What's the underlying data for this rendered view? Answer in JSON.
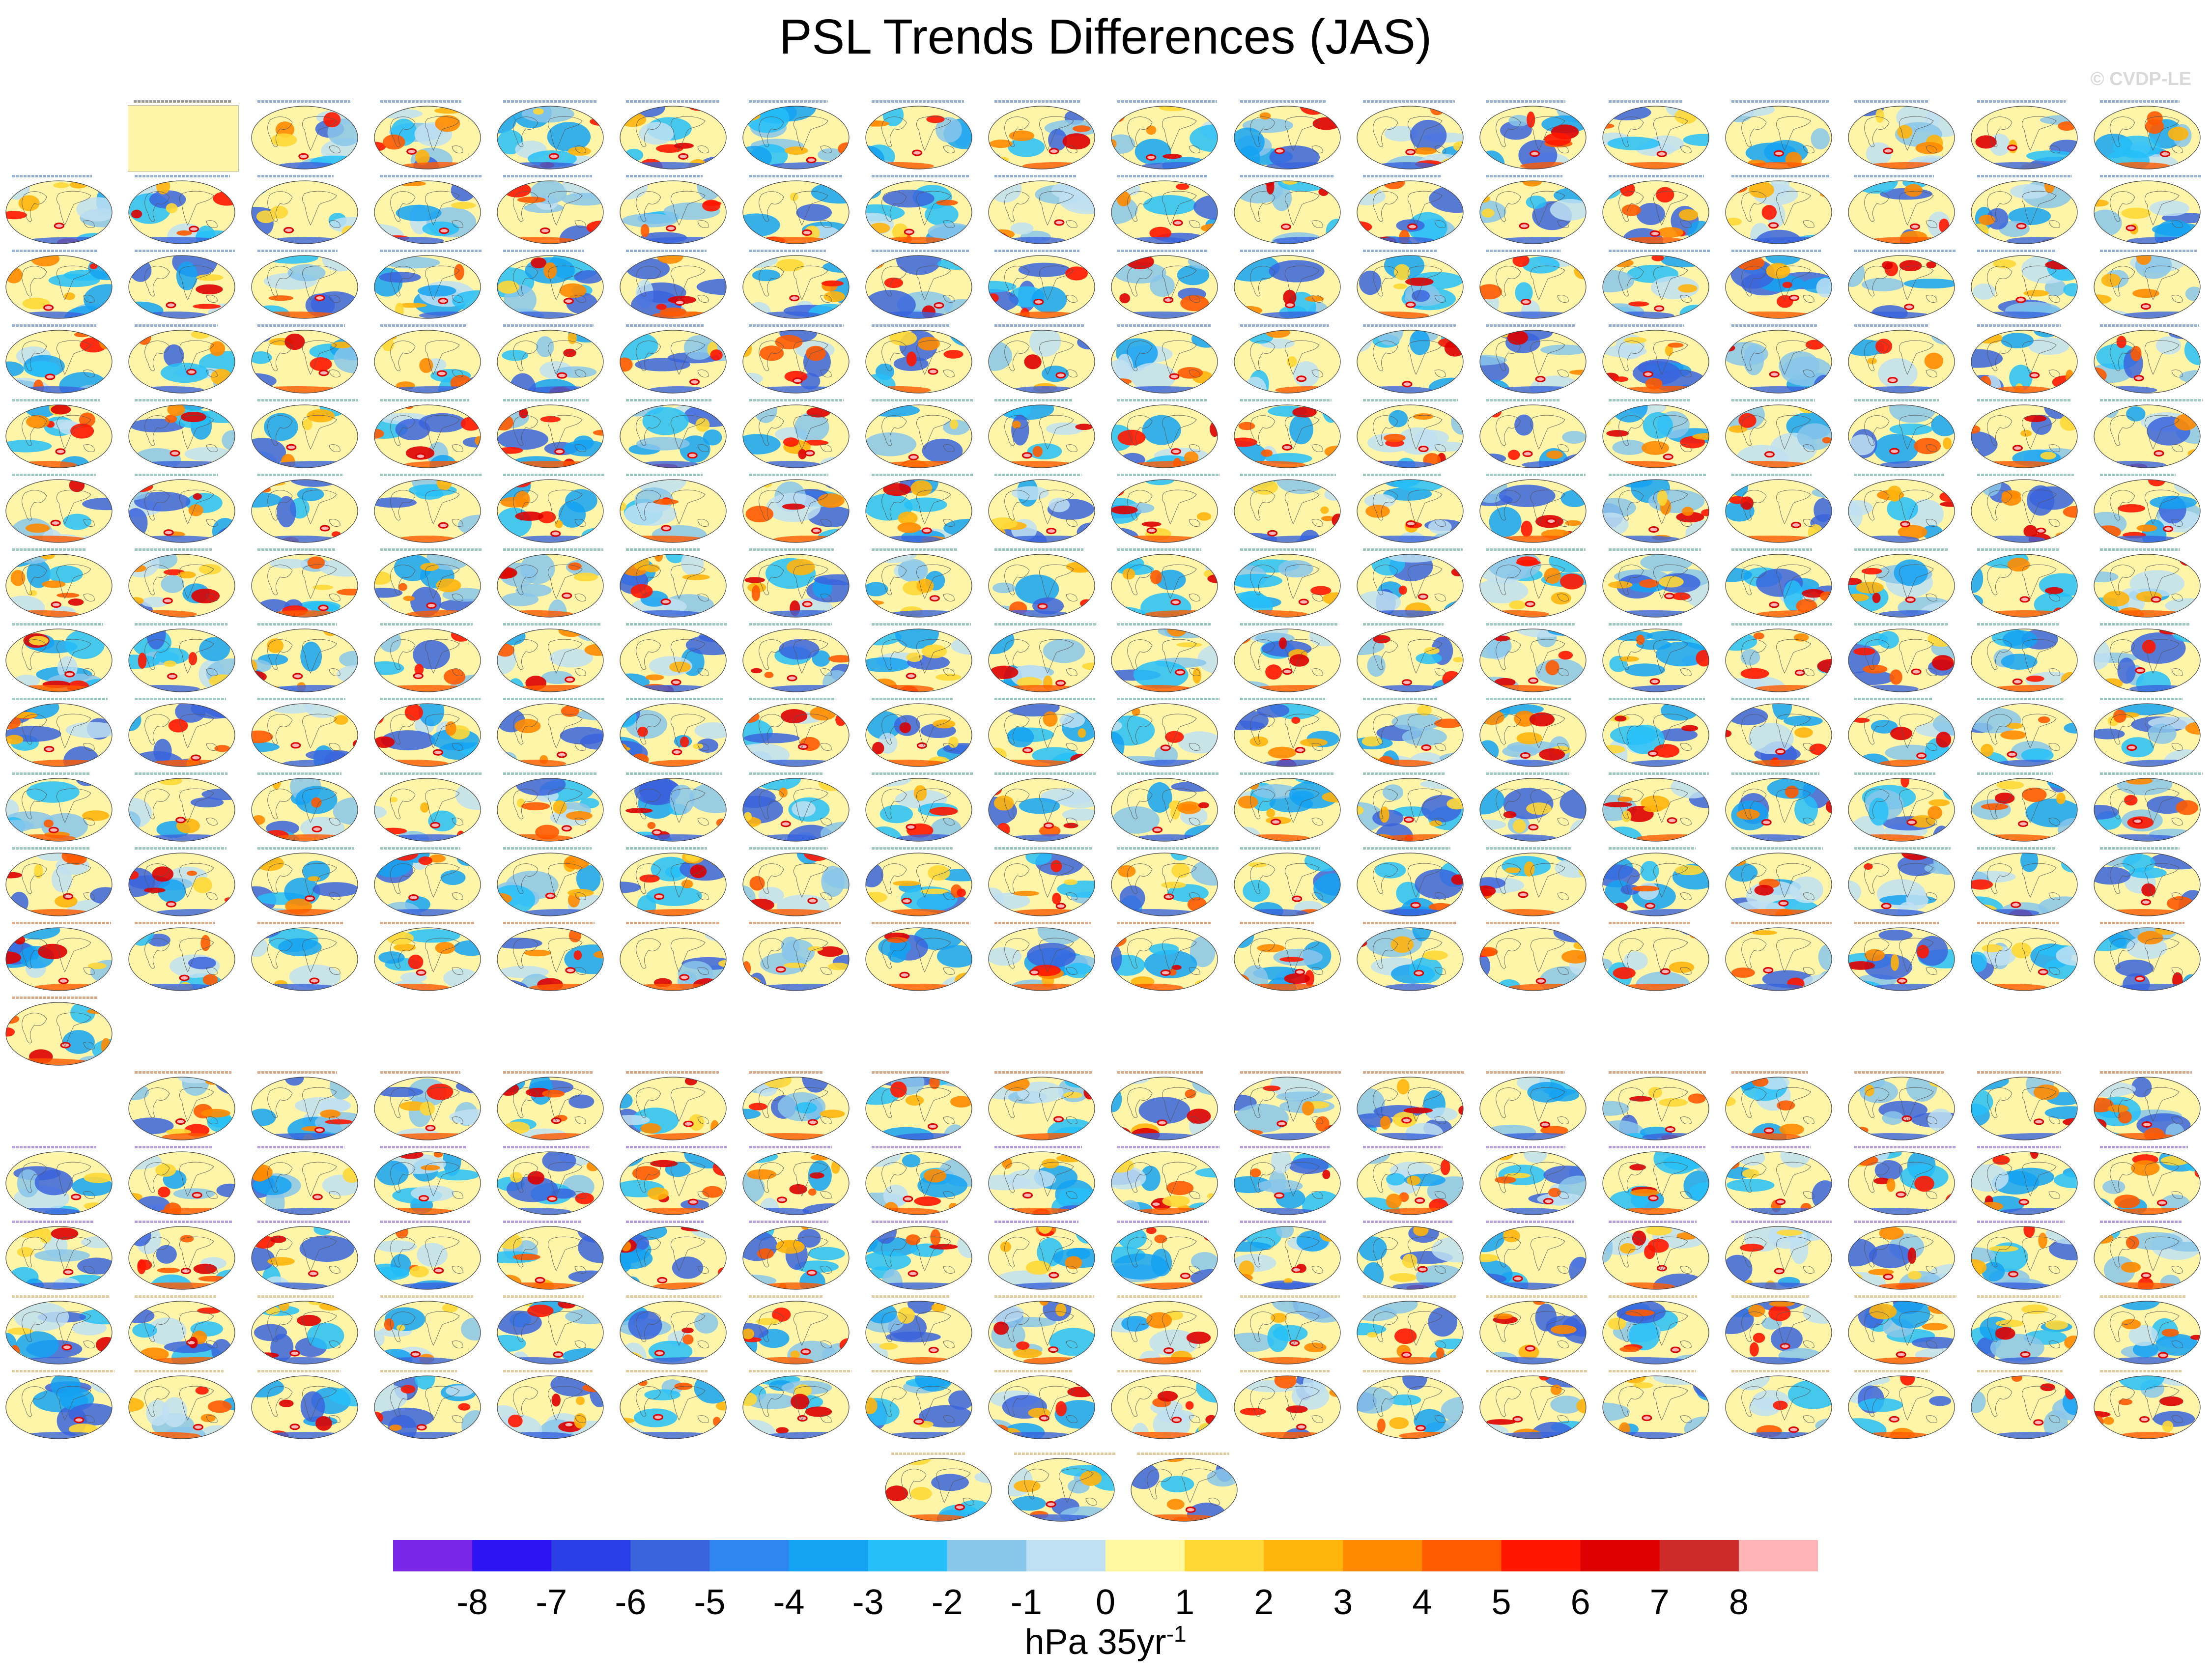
{
  "chart_data": {
    "type": "heatmap",
    "title": "PSL Trends Differences (JAS)",
    "watermark": "© CVDP-LE",
    "panel_grid": {
      "rows": 18,
      "columns": 18,
      "extra_bottom_panels": 3,
      "empty_slots": [
        [
          0,
          0
        ],
        [
          12,
          1
        ],
        [
          12,
          2
        ],
        [
          12,
          3
        ],
        [
          12,
          4
        ],
        [
          12,
          5
        ],
        [
          12,
          6
        ],
        [
          12,
          7
        ],
        [
          12,
          8
        ],
        [
          12,
          9
        ],
        [
          12,
          10
        ],
        [
          12,
          11
        ],
        [
          12,
          12
        ],
        [
          12,
          13
        ],
        [
          12,
          14
        ],
        [
          12,
          15
        ],
        [
          12,
          16
        ],
        [
          12,
          17
        ],
        [
          13,
          0
        ]
      ],
      "field": "sea level pressure trend difference",
      "map_projection": "global"
    },
    "colorbar": {
      "colors": [
        "#7a26e8",
        "#2d14f5",
        "#2a3ee6",
        "#3a64dd",
        "#2f86f0",
        "#14a2f2",
        "#26bff8",
        "#88c6ea",
        "#bfe0f2",
        "#fff8a0",
        "#ffd836",
        "#ffb40c",
        "#ff8a00",
        "#ff5a00",
        "#ff1600",
        "#dd0000",
        "#cf2a2a",
        "#ffb5b5"
      ],
      "tick_labels": [
        "-8",
        "-7",
        "-6",
        "-5",
        "-4",
        "-3",
        "-2",
        "-1",
        "0",
        "1",
        "2",
        "3",
        "4",
        "5",
        "6",
        "7",
        "8"
      ],
      "units_main": "hPa 35yr",
      "units_sup": "-1"
    }
  }
}
